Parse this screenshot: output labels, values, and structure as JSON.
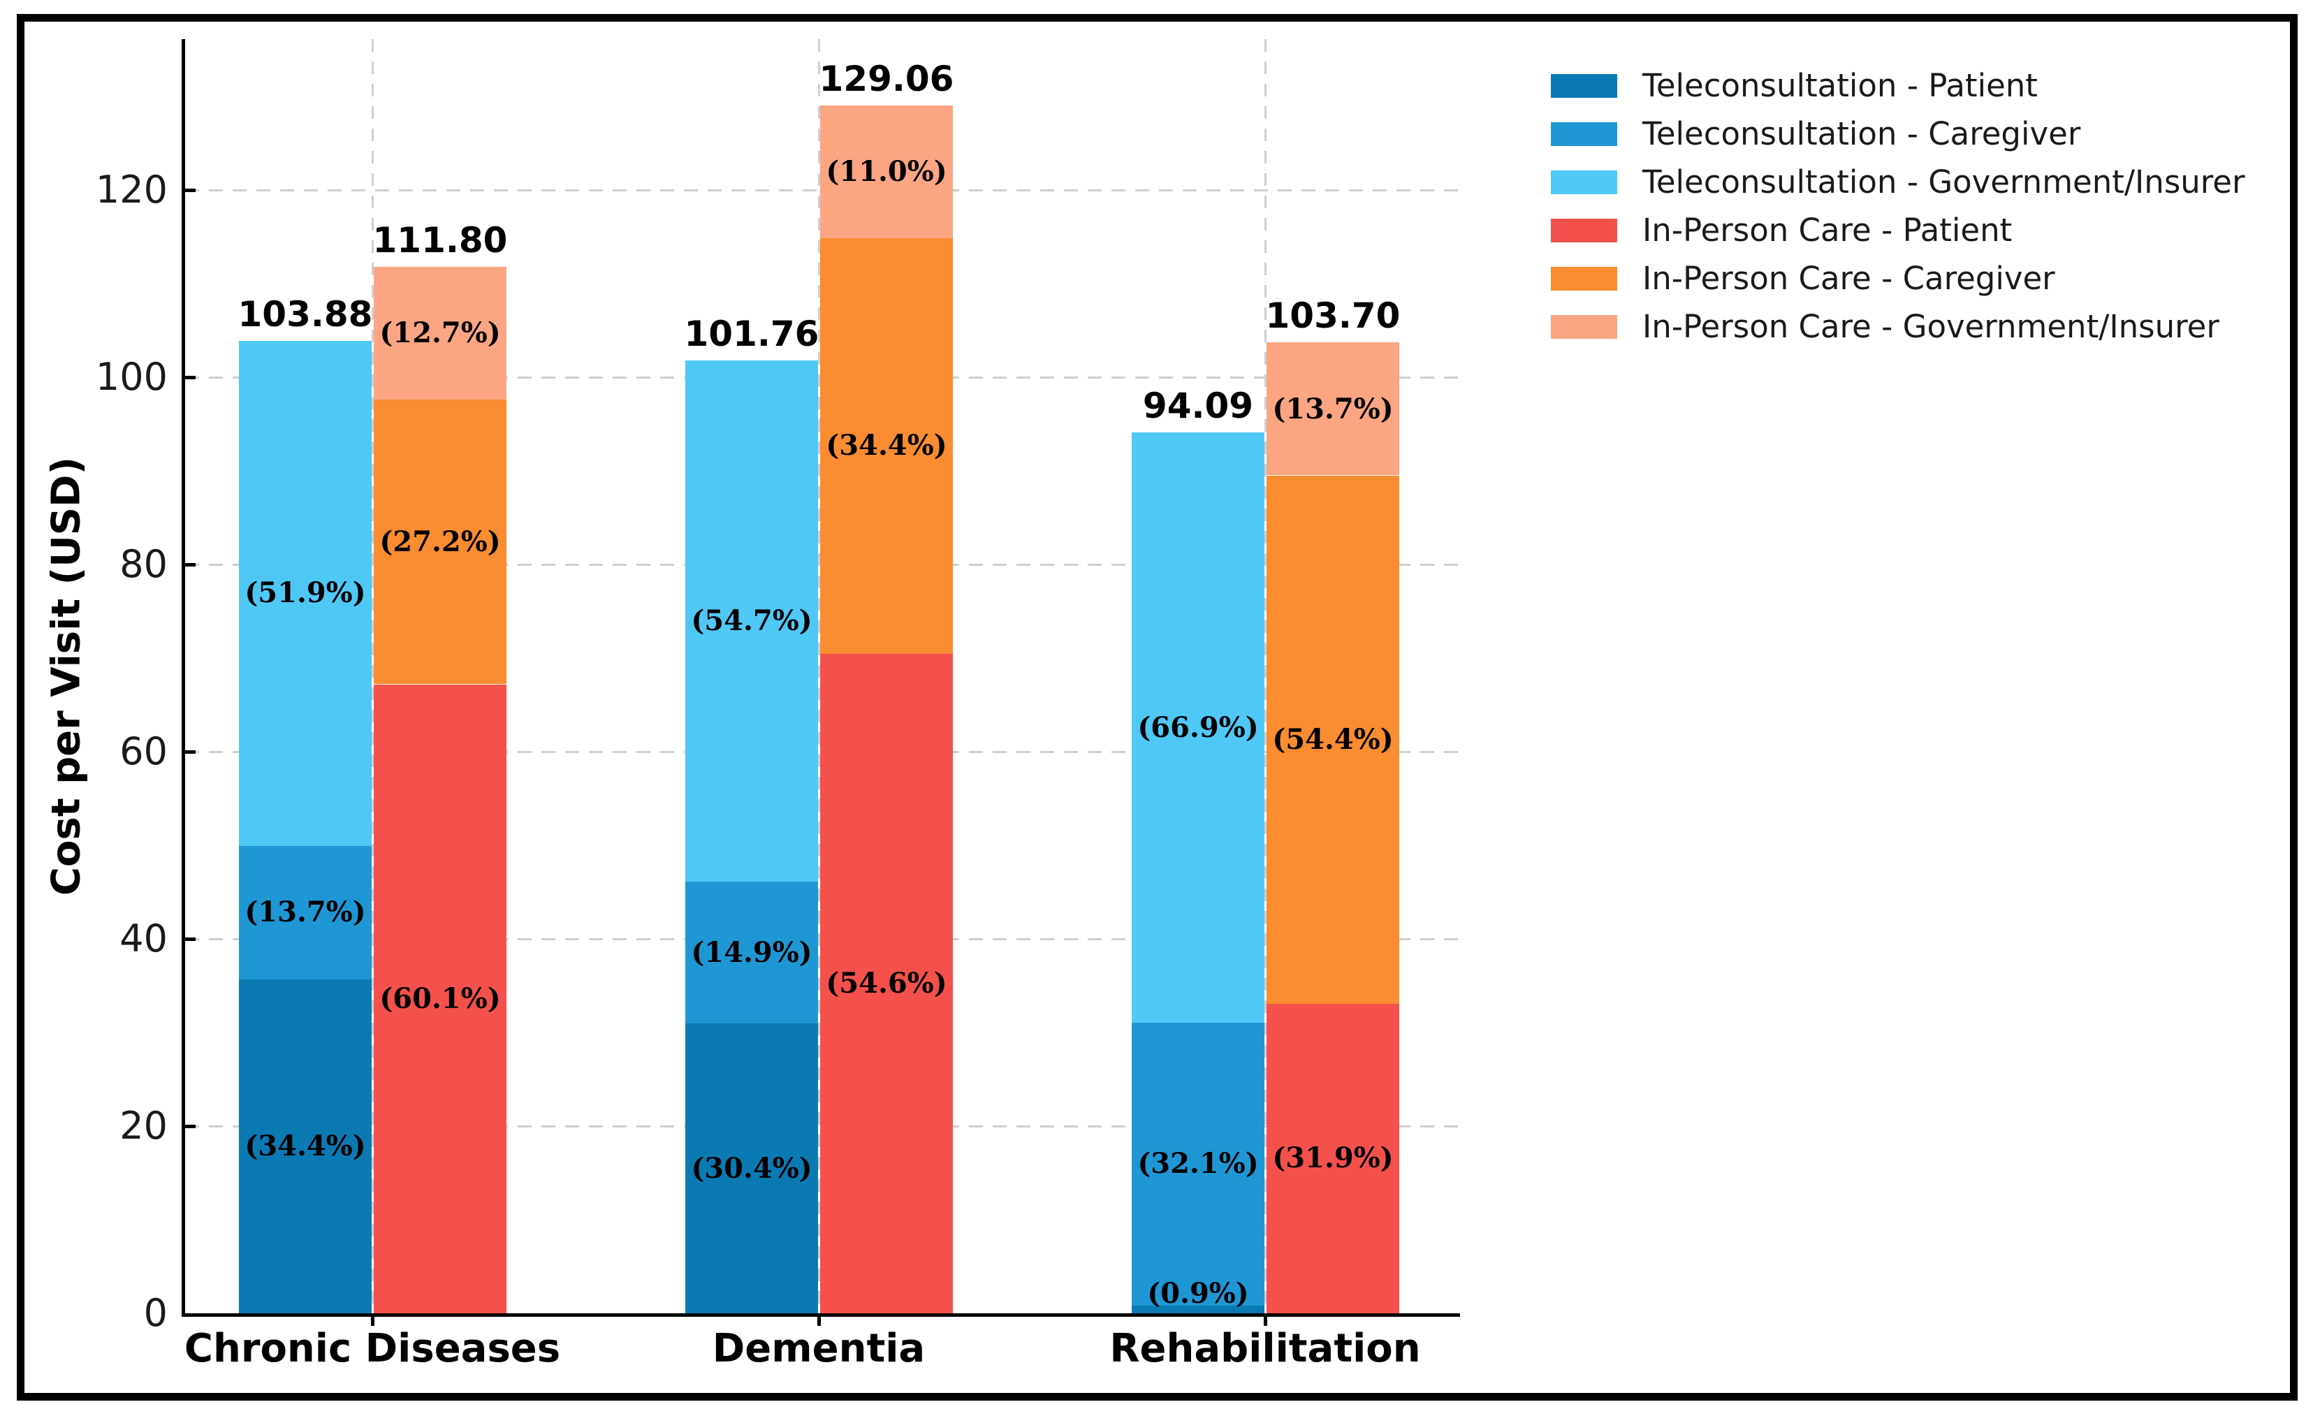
{
  "figure": {
    "kind": "stacked grouped bar chart",
    "background": "#ffffff",
    "frame_color": "#000000"
  },
  "chart_data": {
    "type": "bar",
    "stacked": true,
    "title": "",
    "xlabel": "",
    "ylabel": "Cost per Visit (USD)",
    "ylim": [
      0,
      136
    ],
    "yticks": [
      0,
      20,
      40,
      60,
      80,
      100,
      120
    ],
    "grid": "dashed horizontal and vertical, light gray",
    "legend_position": "upper right",
    "categories": [
      "Chronic Diseases",
      "Dementia",
      "Rehabilitation"
    ],
    "bar_groups": [
      "Teleconsultation",
      "In-Person Care"
    ],
    "bar_totals": [
      [
        "103.88",
        "111.80"
      ],
      [
        "101.76",
        "129.06"
      ],
      [
        "94.09",
        "103.70"
      ]
    ],
    "series": [
      {
        "name": "Teleconsultation - Patient",
        "group": 0,
        "color": "#0b7ab3",
        "values": [
          35.73,
          30.94,
          0.85
        ],
        "pct_labels": [
          "(34.4%)",
          "(30.4%)",
          "(0.9%)"
        ]
      },
      {
        "name": "Teleconsultation - Caregiver",
        "group": 0,
        "color": "#1f97d4",
        "values": [
          14.23,
          15.16,
          30.2
        ],
        "pct_labels": [
          "(13.7%)",
          "(14.9%)",
          "(32.1%)"
        ]
      },
      {
        "name": "Teleconsultation - Government/Insurer",
        "group": 0,
        "color": "#4fc8f6",
        "values": [
          53.92,
          55.66,
          63.04
        ],
        "pct_labels": [
          "(51.9%)",
          "(54.7%)",
          "(66.9%)"
        ]
      },
      {
        "name": "In-Person Care - Patient",
        "group": 1,
        "color": "#f4514c",
        "values": [
          67.19,
          70.47,
          33.08
        ],
        "pct_labels": [
          "(60.1%)",
          "(54.6%)",
          "(31.9%)"
        ]
      },
      {
        "name": "In-Person Care - Caregiver",
        "group": 1,
        "color": "#fa8c31",
        "values": [
          30.41,
          44.4,
          56.41
        ],
        "pct_labels": [
          "(27.2%)",
          "(34.4%)",
          "(54.4%)"
        ]
      },
      {
        "name": "In-Person Care - Government/Insurer",
        "group": 1,
        "color": "#fba583",
        "values": [
          14.2,
          14.19,
          14.21
        ],
        "pct_labels": [
          "(12.7%)",
          "(11.0%)",
          "(13.7%)"
        ]
      }
    ]
  }
}
